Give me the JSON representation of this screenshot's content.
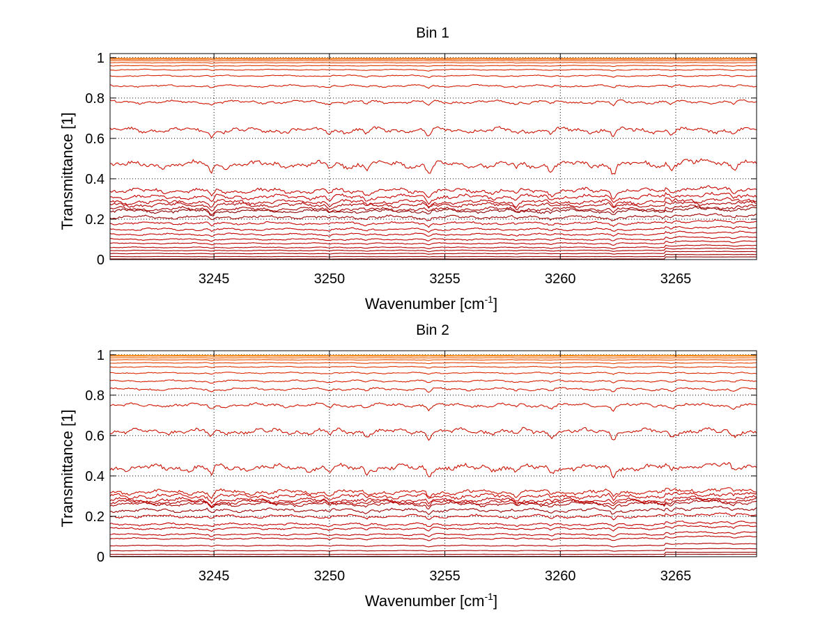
{
  "figure": {
    "background": "#ffffff",
    "axes_color": "#000000",
    "grid_color": "#000000"
  },
  "chart_data": [
    {
      "type": "line",
      "title": "Bin 1",
      "xlabel_main": "Wavenumber [cm",
      "xlabel_sup": "-1",
      "xlabel_end": "]",
      "ylabel": "Transmittance [1]",
      "xlim": [
        3240.5,
        3268.5
      ],
      "ylim": [
        0,
        1.02
      ],
      "xticks": [
        3245,
        3250,
        3255,
        3260,
        3265
      ],
      "xtick_labels": [
        "3245",
        "3250",
        "3255",
        "3260",
        "3265"
      ],
      "yticks": [
        0,
        0.2,
        0.4,
        0.6,
        0.8,
        1
      ],
      "ytick_labels": [
        "0",
        "0.2",
        "0.4",
        "0.6",
        "0.8",
        "1"
      ],
      "grid": true,
      "absorption_lines_cm1": [
        3244.9,
        3250.0,
        3251.6,
        3254.3,
        3258.1,
        3259.6,
        3262.3,
        3264.8,
        3267.5
      ],
      "series_baselines": [
        0.003,
        0.015,
        0.03,
        0.045,
        0.06,
        0.08,
        0.1,
        0.125,
        0.15,
        0.18,
        0.21,
        0.24,
        0.25,
        0.27,
        0.285,
        0.31,
        0.34,
        0.47,
        0.64,
        0.78,
        0.86,
        0.91,
        0.94,
        0.96,
        0.975,
        0.985,
        0.992,
        0.997
      ],
      "series_colors": [
        "#8b0000",
        "#9c0000",
        "#a80000",
        "#b00000",
        "#b80000",
        "#c00000",
        "#c20000",
        "#c40000",
        "#c60000",
        "#c80000",
        "#a00000",
        "#8b0000",
        "#a80000",
        "#b00000",
        "#c00000",
        "#c80000",
        "#c80500",
        "#cc1000",
        "#cc1000",
        "#d01500",
        "#d41a00",
        "#d82000",
        "#dc2a00",
        "#e03500",
        "#e44000",
        "#e85000",
        "#ec6000",
        "#f07000"
      ]
    },
    {
      "type": "line",
      "title": "Bin 2",
      "xlabel_main": "Wavenumber [cm",
      "xlabel_sup": "-1",
      "xlabel_end": "]",
      "ylabel": "Transmittance [1]",
      "xlim": [
        3240.5,
        3268.5
      ],
      "ylim": [
        0,
        1.02
      ],
      "xticks": [
        3245,
        3250,
        3255,
        3260,
        3265
      ],
      "xtick_labels": [
        "3245",
        "3250",
        "3255",
        "3260",
        "3265"
      ],
      "yticks": [
        0,
        0.2,
        0.4,
        0.6,
        0.8,
        1
      ],
      "ytick_labels": [
        "0",
        "0.2",
        "0.4",
        "0.6",
        "0.8",
        "1"
      ],
      "grid": true,
      "absorption_lines_cm1": [
        3244.9,
        3250.0,
        3251.6,
        3254.3,
        3258.1,
        3259.6,
        3262.3,
        3264.8,
        3267.5
      ],
      "series_baselines": [
        0.002,
        0.012,
        0.03,
        0.055,
        0.09,
        0.11,
        0.14,
        0.16,
        0.2,
        0.23,
        0.26,
        0.27,
        0.28,
        0.3,
        0.32,
        0.44,
        0.62,
        0.75,
        0.83,
        0.87,
        0.91,
        0.94,
        0.96,
        0.975,
        0.985,
        0.993,
        0.998
      ],
      "series_colors": [
        "#8b0000",
        "#9c0000",
        "#a80000",
        "#b40000",
        "#bc0000",
        "#c00000",
        "#c40000",
        "#c60000",
        "#c80000",
        "#9a0000",
        "#a80000",
        "#b40000",
        "#c00000",
        "#c80500",
        "#cc1000",
        "#cc1000",
        "#cc1000",
        "#d01500",
        "#d41a00",
        "#d82000",
        "#dc2a00",
        "#e03500",
        "#e44000",
        "#e85000",
        "#ec6000",
        "#f07000",
        "#f48800"
      ]
    }
  ]
}
